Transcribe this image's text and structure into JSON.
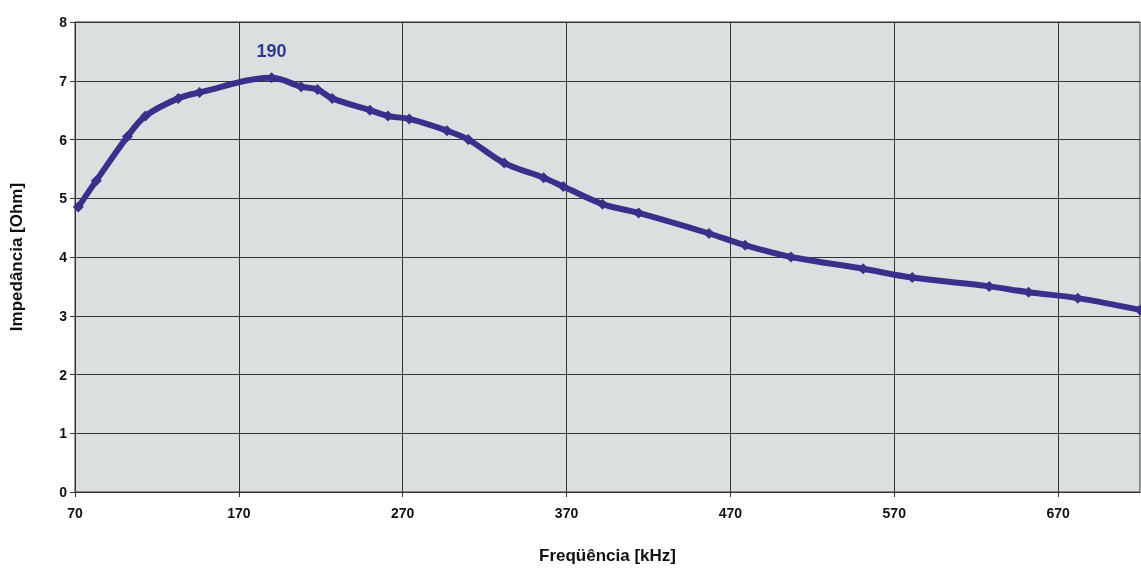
{
  "chart_data": {
    "type": "line",
    "xlabel": "Freqüência [kHz]",
    "ylabel": "Impedância [Ohm]",
    "x": [
      72,
      83,
      102,
      113,
      133,
      146,
      190,
      208,
      218,
      227,
      250,
      261,
      274,
      297,
      310,
      332,
      356,
      368,
      392,
      414,
      457,
      479,
      507,
      551,
      581,
      628,
      652,
      682,
      720
    ],
    "series": [
      {
        "color": "#3b2f8c",
        "values": [
          4.85,
          5.3,
          6.05,
          6.4,
          6.7,
          6.8,
          7.05,
          6.9,
          6.85,
          6.7,
          6.5,
          6.4,
          6.35,
          6.15,
          6.0,
          5.6,
          5.35,
          5.2,
          4.9,
          4.75,
          4.4,
          4.2,
          4.0,
          3.8,
          3.65,
          3.5,
          3.4,
          3.3,
          3.1
        ]
      }
    ],
    "xlim": [
      70,
      720
    ],
    "xticks": [
      70,
      170,
      270,
      370,
      470,
      570,
      670
    ],
    "ylim": [
      0,
      8
    ],
    "yticks": [
      0,
      1,
      2,
      3,
      4,
      5,
      6,
      7,
      8
    ],
    "annotations": [
      {
        "text": "190",
        "x": 190,
        "y": 7.05
      }
    ],
    "grid": true,
    "marker": "diamond",
    "line_style": "solid"
  }
}
